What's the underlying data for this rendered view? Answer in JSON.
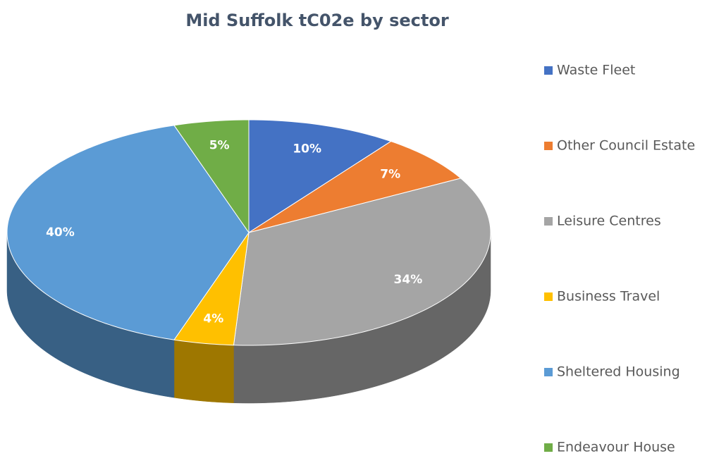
{
  "chart_data": {
    "type": "pie",
    "title": "Mid Suffolk tC02e by sector",
    "categories": [
      "Waste Fleet",
      "Other Council Estate",
      "Leisure Centres",
      "Business Travel",
      "Sheltered Housing",
      "Endeavour House"
    ],
    "values": [
      10,
      7,
      34,
      4,
      40,
      5
    ],
    "value_labels": [
      "10%",
      "7%",
      "34%",
      "4%",
      "40%",
      "5%"
    ],
    "colors": [
      "#4472c4",
      "#ed7d31",
      "#a5a5a5",
      "#ffc000",
      "#5b9bd5",
      "#70ad47"
    ],
    "legend": "right"
  }
}
